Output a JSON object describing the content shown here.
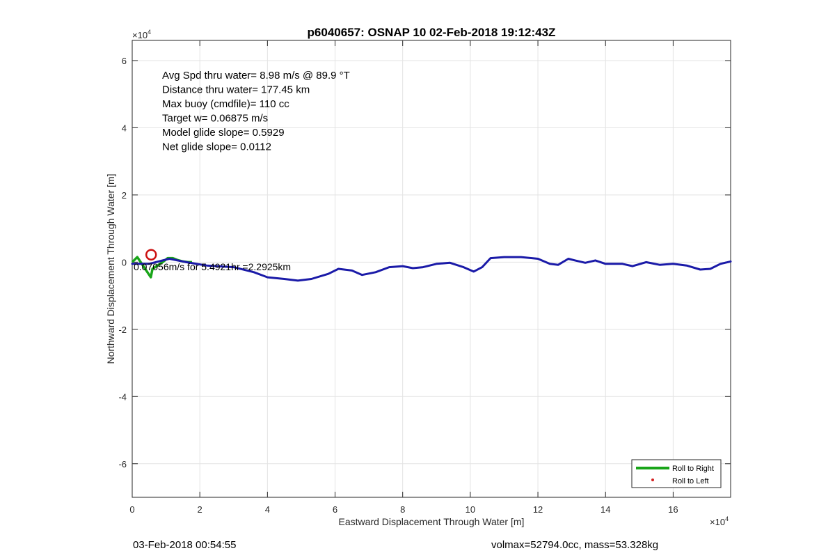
{
  "chart_data": {
    "type": "line",
    "title": "p6040657: OSNAP 10 02-Feb-2018 19:12:43Z",
    "xlabel": "Eastward Displacement Through Water [m]",
    "ylabel": "Northward Displacement Through Water [m]",
    "xlim": [
      0,
      177000
    ],
    "ylim": [
      -70000,
      66000
    ],
    "x_ticks": [
      0,
      2,
      4,
      6,
      8,
      10,
      12,
      14,
      16
    ],
    "y_ticks": [
      6,
      4,
      2,
      0,
      -2,
      -4,
      -6
    ],
    "x_exponent": "×10",
    "y_exponent": "×10",
    "exponent_power": "4",
    "grid": true,
    "legend_position": "bottom-right",
    "series": [
      {
        "name": "Roll to Right",
        "color": "#19a519",
        "x": [
          0,
          1500,
          5500,
          6000,
          9000,
          10500,
          12000,
          13500,
          15000,
          16500,
          17700
        ],
        "y": [
          0,
          1500,
          -4500,
          -2000,
          0,
          1200,
          1200,
          600,
          200,
          0,
          0
        ],
        "scale": 10000
      },
      {
        "name": "Roll to Left",
        "color": "#d42020",
        "x": [],
        "y": []
      }
    ],
    "track": {
      "color": "#1a1aa8",
      "x": [
        0,
        0.5,
        1.1,
        1.6,
        2.2,
        3.0,
        3.6,
        4.0,
        4.5,
        4.9,
        5.3,
        5.8,
        6.1,
        6.5,
        6.8,
        7.2,
        7.6,
        8.0,
        8.3,
        8.6,
        9.0,
        9.4,
        9.8,
        10.1,
        10.35,
        10.6,
        11.0,
        11.5,
        12.0,
        12.35,
        12.6,
        12.9,
        13.1,
        13.4,
        13.7,
        14.0,
        14.5,
        14.8,
        15.2,
        15.6,
        16.0,
        16.4,
        16.8,
        17.1,
        17.4,
        17.7
      ],
      "y": [
        -0.05,
        -0.05,
        0.1,
        0.0,
        -0.1,
        -0.15,
        -0.3,
        -0.45,
        -0.5,
        -0.55,
        -0.5,
        -0.35,
        -0.2,
        -0.25,
        -0.38,
        -0.3,
        -0.15,
        -0.12,
        -0.18,
        -0.15,
        -0.05,
        -0.02,
        -0.15,
        -0.28,
        -0.15,
        0.12,
        0.15,
        0.15,
        0.1,
        -0.05,
        -0.08,
        0.1,
        0.05,
        -0.02,
        0.05,
        -0.05,
        -0.05,
        -0.12,
        0.0,
        -0.08,
        -0.05,
        -0.1,
        -0.22,
        -0.2,
        -0.05,
        0.02
      ],
      "scale": 10000
    },
    "start_marker": {
      "x": 5600,
      "y": 2200,
      "color": "#cc1111"
    },
    "annotations": [
      "Avg Spd thru water=  8.98 m/s @  89.9 °T",
      "Distance thru water= 177.45 km",
      "Max buoy (cmdfile)= 110 cc",
      "Target w= 0.06875 m/s",
      "Model glide slope= 0.5929",
      "Net glide slope= 0.0112"
    ],
    "overlap_label": "0.07056m/s for 5.4921hr =2.2925km",
    "footer_left": "03-Feb-2018 00:54:55",
    "footer_right": "volmax=52794.0cc, mass=53.328kg"
  }
}
